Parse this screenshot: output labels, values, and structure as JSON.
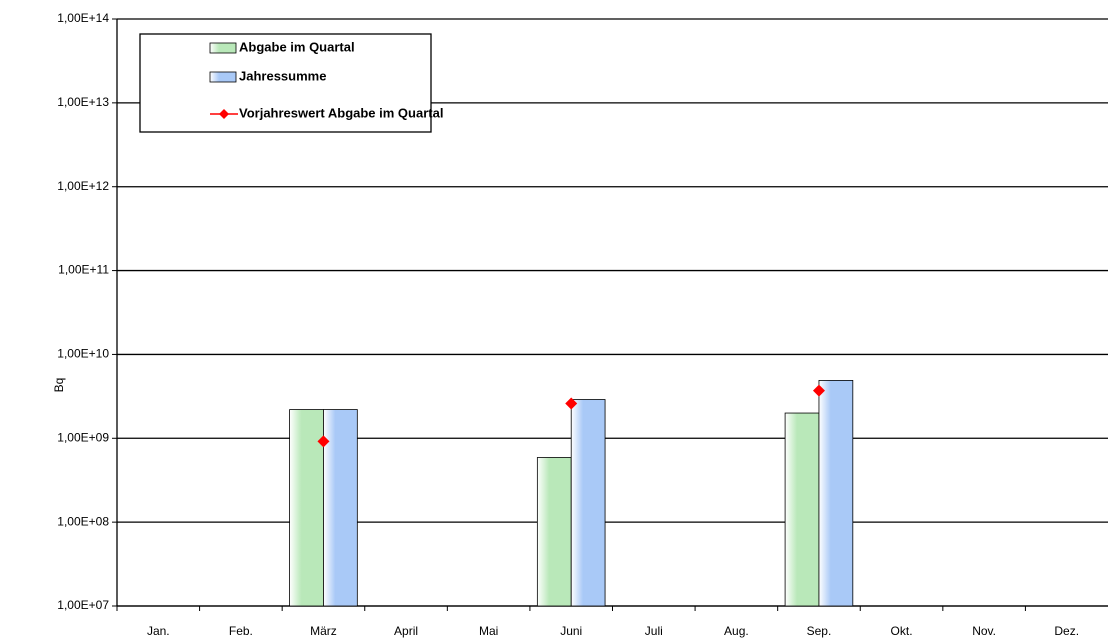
{
  "chart_data": {
    "type": "bar",
    "log_scale": true,
    "grid": true,
    "y_label": "Bq",
    "categories": [
      "Jan.",
      "Feb.",
      "März",
      "April",
      "Mai",
      "Juni",
      "Juli",
      "Aug.",
      "Sep.",
      "Okt.",
      "Nov.",
      "Dez."
    ],
    "series": [
      {
        "name": "Abgabe im Quartal",
        "color": "#b9e8b9",
        "type": "bar",
        "values": [
          null,
          null,
          2200000000,
          null,
          null,
          590000000,
          null,
          null,
          2000000000,
          null,
          null,
          null
        ]
      },
      {
        "name": "Jahressumme",
        "color": "#a9c9f7",
        "type": "bar",
        "values": [
          null,
          null,
          2200000000,
          null,
          null,
          2900000000,
          null,
          null,
          4900000000,
          null,
          null,
          null
        ]
      },
      {
        "name": "Vorjahreswert Abgabe im Quartal",
        "color": "#ff0000",
        "type": "scatter",
        "values": [
          null,
          null,
          920000000,
          null,
          null,
          2600000000,
          null,
          null,
          3700000000,
          null,
          null,
          null
        ]
      }
    ],
    "ylim": [
      10000000,
      100000000000000
    ],
    "yticks": [
      {
        "value": 10000000,
        "label": "1,00E+07"
      },
      {
        "value": 100000000,
        "label": "1,00E+08"
      },
      {
        "value": 1000000000,
        "label": "1,00E+09"
      },
      {
        "value": 10000000000,
        "label": "1,00E+10"
      },
      {
        "value": 100000000000,
        "label": "1,00E+11"
      },
      {
        "value": 1000000000000,
        "label": "1,00E+12"
      },
      {
        "value": 10000000000000,
        "label": "1,00E+13"
      },
      {
        "value": 100000000000000,
        "label": "1,00E+14"
      }
    ]
  }
}
